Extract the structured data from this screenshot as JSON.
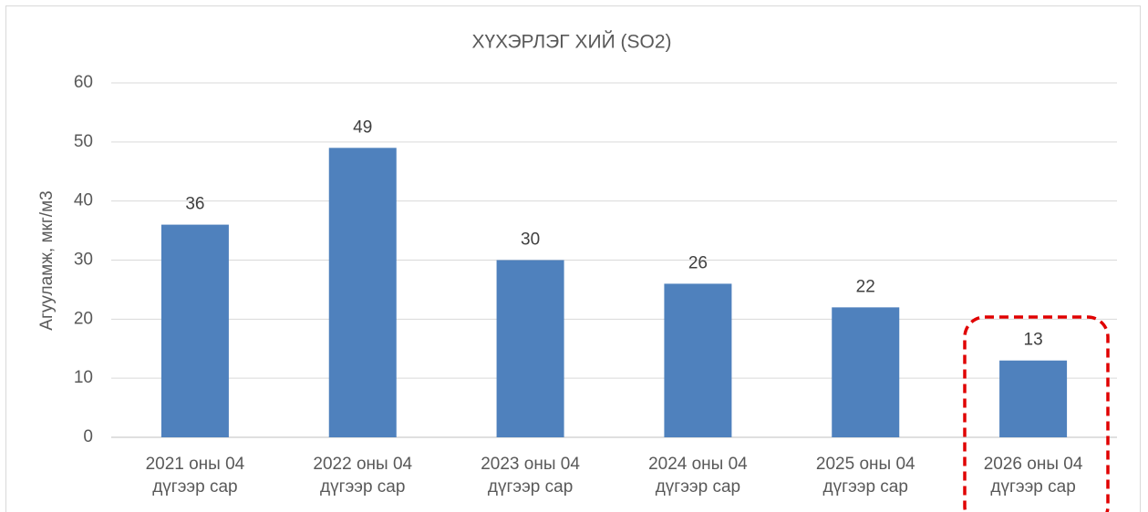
{
  "chart_data": {
    "type": "bar",
    "title": "ХҮХЭРЛЭГ ХИЙ (SO2)",
    "y_label": "Агууламж, мкг/м3",
    "categories": [
      "2021 оны 04 дүгээр сар",
      "2022 оны 04 дүгээр сар",
      "2023 оны 04 дүгээр сар",
      "2024 оны 04 дүгээр сар",
      "2025 оны 04 дүгээр сар",
      "2026 оны 04 дүгээр сар"
    ],
    "values": [
      36,
      49,
      30,
      26,
      22,
      13
    ],
    "color": "#4f81bd",
    "ylim": [
      0,
      60
    ],
    "yticks": [
      0,
      10,
      20,
      30,
      40,
      50,
      60
    ],
    "grid": true
  }
}
